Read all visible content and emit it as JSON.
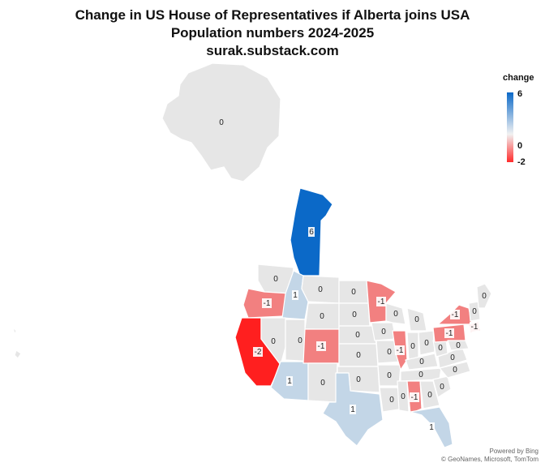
{
  "title": {
    "line1": "Change in US House of Representatives if Alberta joins USA",
    "line2": "Population numbers 2024-2025",
    "line3": "surak.substack.com"
  },
  "legend": {
    "title": "change",
    "max_label": "6",
    "mid_label": "0",
    "min_label": "-2",
    "colors": {
      "max": "#0b69c8",
      "mid": "#f1f1f1",
      "min": "#ff2b2b"
    }
  },
  "credit": {
    "line1": "Powered by Bing",
    "line2": "© GeoNames, Microsoft, TomTom"
  },
  "colors": {
    "neutral": "#e6e6e6",
    "plus1": "#c3d6e7",
    "minus1": "#f28080",
    "minus2": "#ff1f1f",
    "plus6": "#0b69c8",
    "border": "#ffffff"
  },
  "regions": [
    {
      "name": "Alaska",
      "value": "0"
    },
    {
      "name": "Alberta",
      "value": "6"
    },
    {
      "name": "Washington",
      "value": "0"
    },
    {
      "name": "Oregon",
      "value": "-1"
    },
    {
      "name": "California",
      "value": "-2"
    },
    {
      "name": "Idaho",
      "value": "1"
    },
    {
      "name": "Nevada",
      "value": "0"
    },
    {
      "name": "Montana",
      "value": "0"
    },
    {
      "name": "Wyoming",
      "value": "0"
    },
    {
      "name": "Utah",
      "value": "0"
    },
    {
      "name": "Arizona",
      "value": "1"
    },
    {
      "name": "Colorado",
      "value": "-1"
    },
    {
      "name": "New Mexico",
      "value": "0"
    },
    {
      "name": "North Dakota",
      "value": "0"
    },
    {
      "name": "South Dakota",
      "value": "0"
    },
    {
      "name": "Nebraska",
      "value": "0"
    },
    {
      "name": "Kansas",
      "value": "0"
    },
    {
      "name": "Oklahoma",
      "value": "0"
    },
    {
      "name": "Texas",
      "value": "1"
    },
    {
      "name": "Minnesota",
      "value": "-1"
    },
    {
      "name": "Iowa",
      "value": "0"
    },
    {
      "name": "Missouri",
      "value": "0"
    },
    {
      "name": "Arkansas",
      "value": "0"
    },
    {
      "name": "Louisiana",
      "value": "0"
    },
    {
      "name": "Wisconsin",
      "value": "0"
    },
    {
      "name": "Illinois",
      "value": "-1"
    },
    {
      "name": "Michigan",
      "value": "0"
    },
    {
      "name": "Indiana",
      "value": "0"
    },
    {
      "name": "Ohio",
      "value": "0"
    },
    {
      "name": "Kentucky",
      "value": "0"
    },
    {
      "name": "Tennessee",
      "value": "0"
    },
    {
      "name": "Mississippi",
      "value": "0"
    },
    {
      "name": "Alabama",
      "value": "-1"
    },
    {
      "name": "Georgia",
      "value": "0"
    },
    {
      "name": "Florida",
      "value": "1"
    },
    {
      "name": "South Carolina",
      "value": "0"
    },
    {
      "name": "North Carolina",
      "value": "0"
    },
    {
      "name": "Virginia",
      "value": "0"
    },
    {
      "name": "West Virginia",
      "value": "0"
    },
    {
      "name": "Pennsylvania",
      "value": "-1"
    },
    {
      "name": "New York",
      "value": "-1"
    },
    {
      "name": "Rhode Island",
      "value": "-1"
    },
    {
      "name": "Maine",
      "value": "0"
    },
    {
      "name": "Vermont",
      "value": "0"
    },
    {
      "name": "Maryland",
      "value": "0"
    }
  ]
}
